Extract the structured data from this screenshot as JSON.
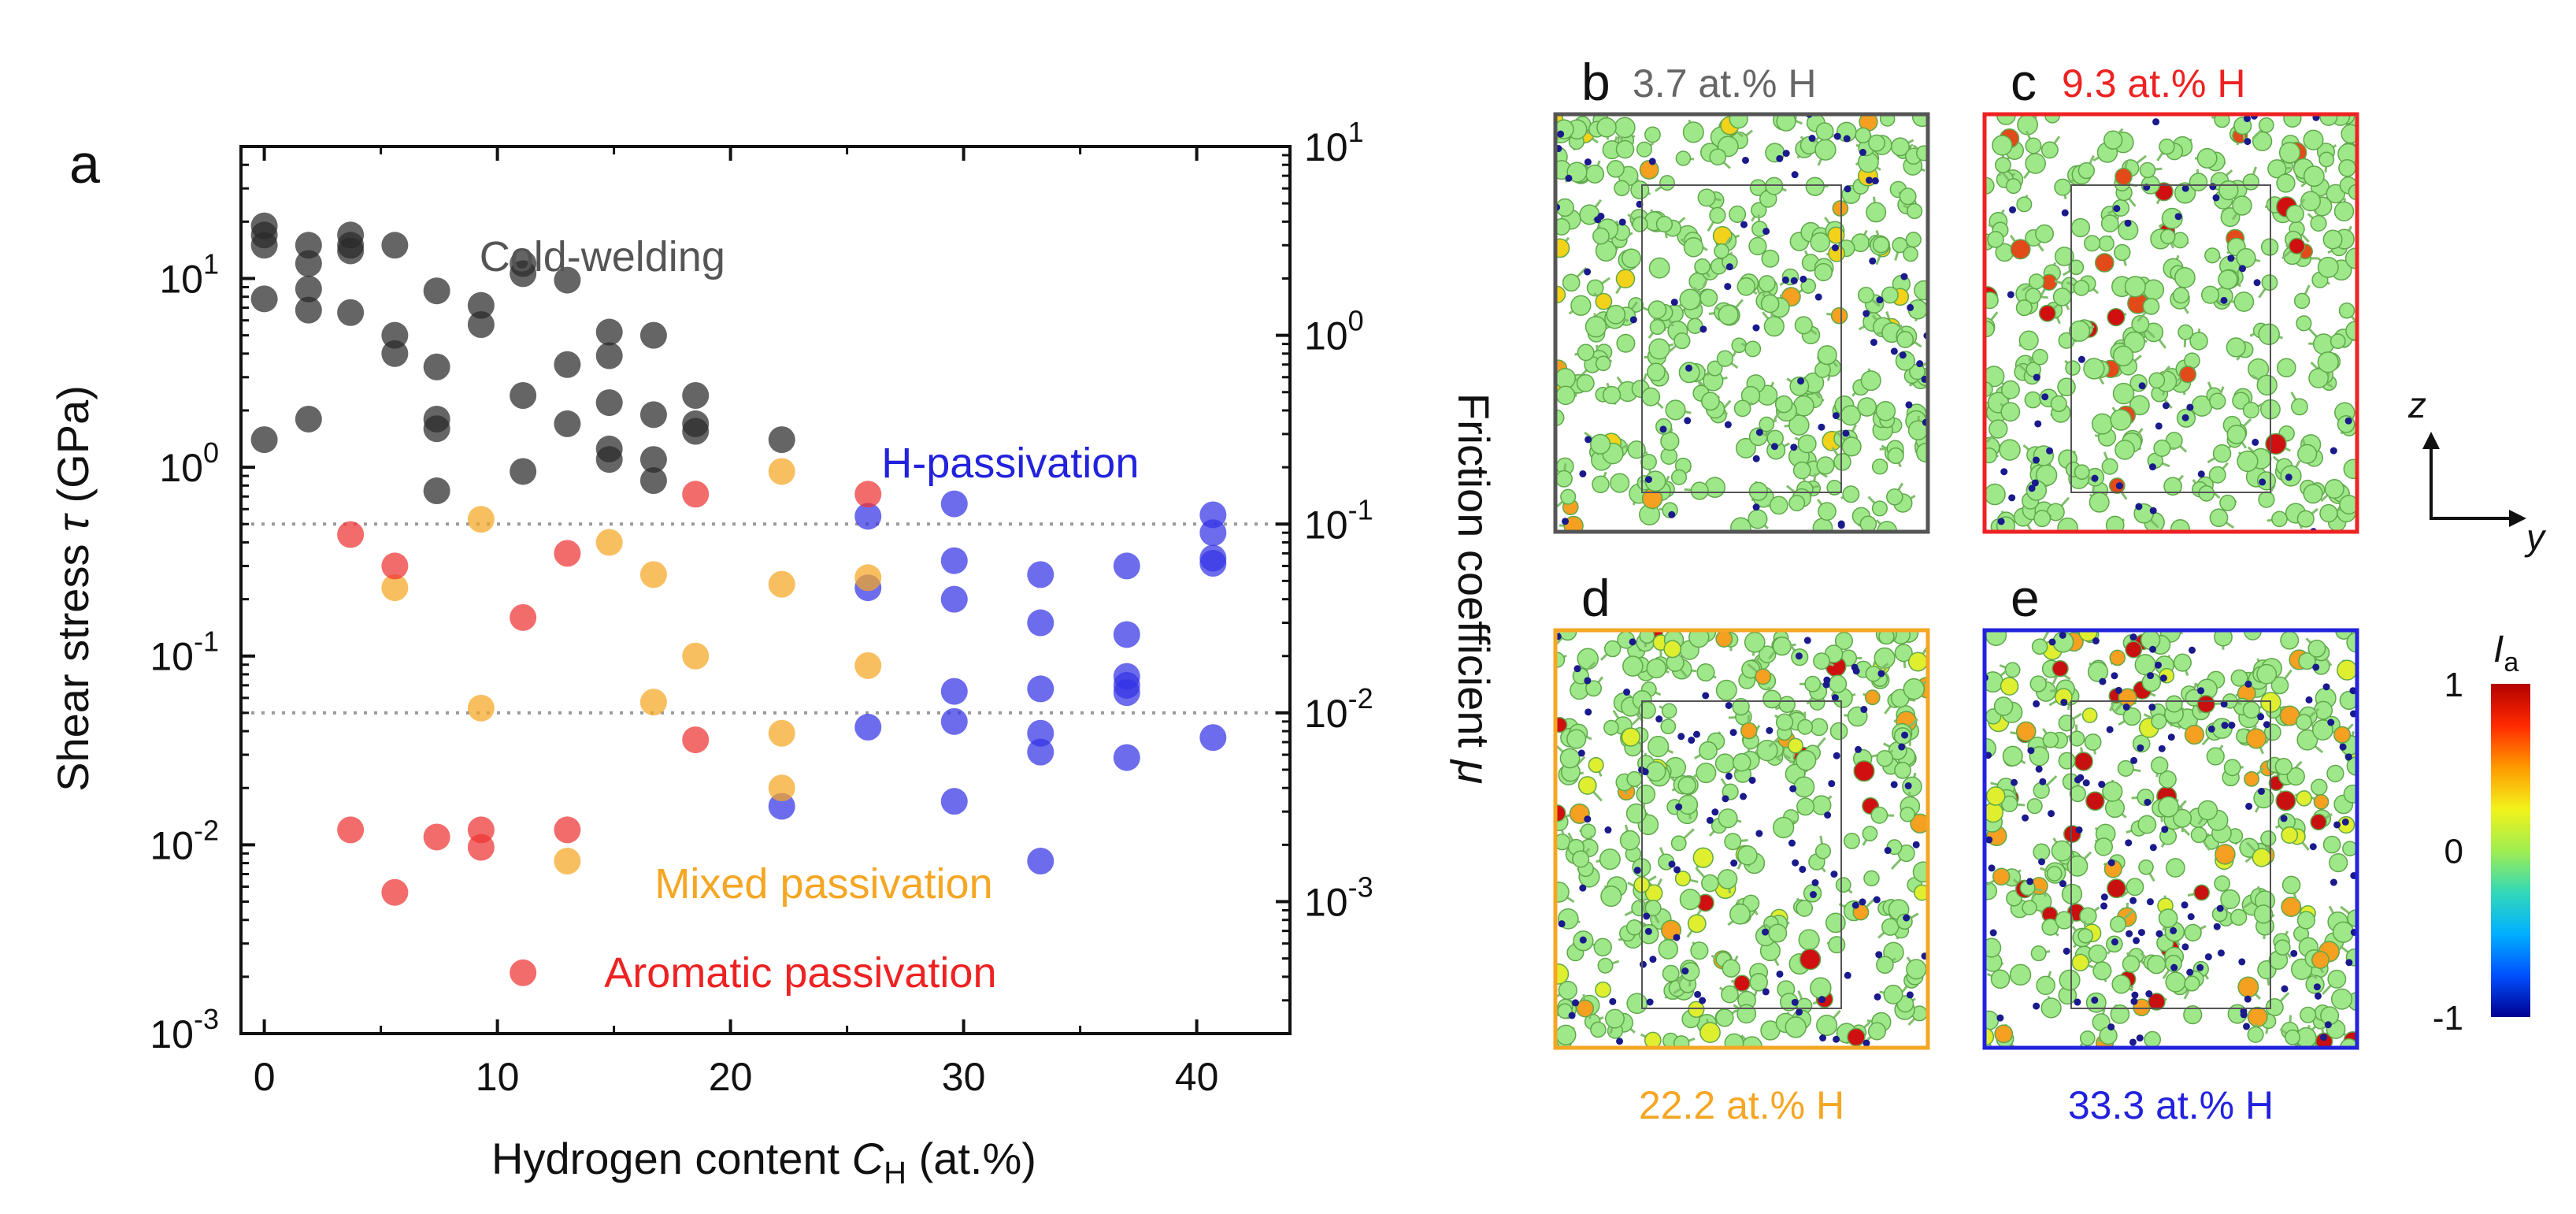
{
  "chart_data": {
    "type": "scatter",
    "panel_letter": "a",
    "xlabel": {
      "main": "Hydrogen content ",
      "italic": "C",
      "sub": "H",
      "unit": " (at.%)"
    },
    "ylabel": {
      "main": "Shear stress ",
      "italic": "τ",
      "unit": " (GPa)"
    },
    "y2label": {
      "main": "Friction coefficient ",
      "italic": "μ"
    },
    "xlim": [
      -1,
      44
    ],
    "ylim": [
      0.001,
      50
    ],
    "y2lim": [
      0.0002,
      10
    ],
    "yscale": "log",
    "xticks": [
      0,
      10,
      20,
      30,
      40
    ],
    "xtick_labels": [
      "0",
      "10",
      "20",
      "30",
      "40"
    ],
    "yticks": [
      {
        "value": 0.001,
        "base": "10",
        "exp": "-3"
      },
      {
        "value": 0.01,
        "base": "10",
        "exp": "-2"
      },
      {
        "value": 0.1,
        "base": "10",
        "exp": "-1"
      },
      {
        "value": 1,
        "base": "10",
        "exp": "0"
      },
      {
        "value": 10,
        "base": "10",
        "exp": "1"
      }
    ],
    "y2ticks": [
      {
        "value": 0.001,
        "base": "10",
        "exp": "-3"
      },
      {
        "value": 0.01,
        "base": "10",
        "exp": "-2"
      },
      {
        "value": 0.1,
        "base": "10",
        "exp": "-1"
      },
      {
        "value": 1,
        "base": "10",
        "exp": "0"
      },
      {
        "value": 10,
        "base": "10",
        "exp": "1"
      }
    ],
    "reference_lines_tau": [
      0.5,
      0.05
    ],
    "series": [
      {
        "name": "Cold-welding",
        "color": "#2a2a2a",
        "points": [
          [
            0,
            19
          ],
          [
            0,
            17
          ],
          [
            0,
            15
          ],
          [
            0,
            7.8
          ],
          [
            0,
            1.4
          ],
          [
            1.9,
            15
          ],
          [
            1.9,
            12
          ],
          [
            1.9,
            8.8
          ],
          [
            1.9,
            6.8
          ],
          [
            1.9,
            1.8
          ],
          [
            3.7,
            17
          ],
          [
            3.7,
            15
          ],
          [
            3.7,
            14
          ],
          [
            3.7,
            6.6
          ],
          [
            5.6,
            15
          ],
          [
            5.6,
            5
          ],
          [
            5.6,
            4
          ],
          [
            7.4,
            8.6
          ],
          [
            7.4,
            3.4
          ],
          [
            7.4,
            1.8
          ],
          [
            7.4,
            1.6
          ],
          [
            7.4,
            0.75
          ],
          [
            9.3,
            7.2
          ],
          [
            9.3,
            5.7
          ],
          [
            11.1,
            12
          ],
          [
            11.1,
            10.6
          ],
          [
            11.1,
            2.4
          ],
          [
            11.1,
            0.95
          ],
          [
            13,
            9.8
          ],
          [
            13,
            3.5
          ],
          [
            13,
            1.7
          ],
          [
            14.8,
            5.2
          ],
          [
            14.8,
            3.9
          ],
          [
            14.8,
            2.2
          ],
          [
            14.8,
            1.25
          ],
          [
            14.8,
            1.1
          ],
          [
            16.7,
            5
          ],
          [
            16.7,
            1.9
          ],
          [
            16.7,
            1.1
          ],
          [
            16.7,
            0.85
          ],
          [
            18.5,
            2.4
          ],
          [
            18.5,
            1.7
          ],
          [
            18.5,
            1.55
          ],
          [
            22.2,
            1.4
          ]
        ]
      },
      {
        "name": "H-passivation",
        "color": "#3333e6",
        "points": [
          [
            22.2,
            0.016
          ],
          [
            25.9,
            0.55
          ],
          [
            25.9,
            0.23
          ],
          [
            25.9,
            0.042
          ],
          [
            29.6,
            0.64
          ],
          [
            29.6,
            0.32
          ],
          [
            29.6,
            0.2
          ],
          [
            29.6,
            0.065
          ],
          [
            29.6,
            0.045
          ],
          [
            29.6,
            0.017
          ],
          [
            33.3,
            0.27
          ],
          [
            33.3,
            0.15
          ],
          [
            33.3,
            0.067
          ],
          [
            33.3,
            0.039
          ],
          [
            33.3,
            0.031
          ],
          [
            33.3,
            0.0082
          ],
          [
            37,
            0.3
          ],
          [
            37,
            0.13
          ],
          [
            37,
            0.078
          ],
          [
            37,
            0.07
          ],
          [
            37,
            0.064
          ],
          [
            37,
            0.029
          ],
          [
            40.7,
            0.56
          ],
          [
            40.7,
            0.45
          ],
          [
            40.7,
            0.33
          ],
          [
            40.7,
            0.31
          ],
          [
            40.7,
            0.037
          ]
        ]
      },
      {
        "name": "Mixed passivation",
        "color": "#f5a623",
        "points": [
          [
            5.6,
            0.23
          ],
          [
            9.3,
            0.53
          ],
          [
            9.3,
            0.053
          ],
          [
            13,
            0.0082
          ],
          [
            14.8,
            0.4
          ],
          [
            16.7,
            0.27
          ],
          [
            16.7,
            0.057
          ],
          [
            18.5,
            0.1
          ],
          [
            22.2,
            0.95
          ],
          [
            22.2,
            0.24
          ],
          [
            22.2,
            0.039
          ],
          [
            22.2,
            0.02
          ],
          [
            25.9,
            0.26
          ],
          [
            25.9,
            0.089
          ]
        ]
      },
      {
        "name": "Aromatic passivation",
        "color": "#ee3333",
        "points": [
          [
            3.7,
            0.44
          ],
          [
            3.7,
            0.012
          ],
          [
            5.6,
            0.3
          ],
          [
            5.6,
            0.0056
          ],
          [
            7.4,
            0.011
          ],
          [
            9.3,
            0.012
          ],
          [
            9.3,
            0.0097
          ],
          [
            11.1,
            0.16
          ],
          [
            11.1,
            0.0021
          ],
          [
            13,
            0.35
          ],
          [
            13,
            0.012
          ],
          [
            18.5,
            0.72
          ],
          [
            18.5,
            0.036
          ],
          [
            25.9,
            0.72
          ]
        ]
      }
    ],
    "annotations": [
      {
        "text": "Cold-welding",
        "color": "#555555",
        "x": 14.5,
        "y": 13
      },
      {
        "text": "H-passivation",
        "color": "#2222dd",
        "x": 32,
        "y": 1.05
      },
      {
        "text": "Mixed passivation",
        "color": "#f5a623",
        "x": 24,
        "y": 0.0062
      },
      {
        "text": "Aromatic passivation",
        "color": "#ee2222",
        "x": 23,
        "y": 0.0021
      }
    ]
  },
  "snapshots": [
    {
      "letter": "b",
      "caption": "3.7 at.% H",
      "caption_color": "#666666",
      "frame_color": "#555555",
      "caption_position": "top"
    },
    {
      "letter": "c",
      "caption": "9.3 at.% H",
      "caption_color": "#ee2222",
      "frame_color": "#ee2222",
      "caption_position": "top"
    },
    {
      "letter": "d",
      "caption": "22.2 at.% H",
      "caption_color": "#f5a623",
      "frame_color": "#f5a623",
      "caption_position": "bottom"
    },
    {
      "letter": "e",
      "caption": "33.3 at.% H",
      "caption_color": "#2222dd",
      "frame_color": "#2222dd",
      "caption_position": "bottom"
    }
  ],
  "axes_indicator": {
    "vertical": "z",
    "horizontal": "y"
  },
  "colorbar": {
    "label_main": "I",
    "label_sub": "a",
    "ticks": [
      {
        "value": 1,
        "label": "1"
      },
      {
        "value": 0,
        "label": "0"
      },
      {
        "value": -1,
        "label": "-1"
      }
    ],
    "colors": [
      "#b30000",
      "#ff2a00",
      "#ff9900",
      "#f2f21a",
      "#a0ee50",
      "#34d9b8",
      "#00b0ff",
      "#0050ff",
      "#000090"
    ]
  }
}
